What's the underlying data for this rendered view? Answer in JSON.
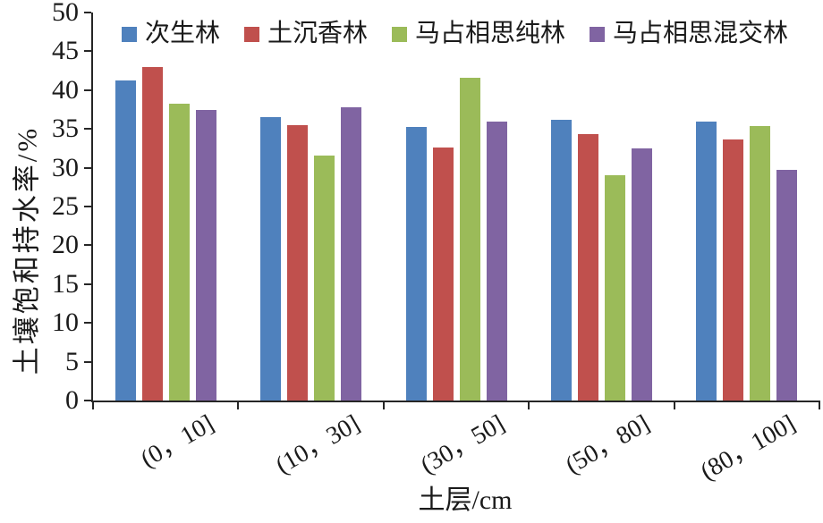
{
  "chart_data": {
    "type": "bar",
    "title": "",
    "xlabel": "土层/cm",
    "ylabel": "土壤饱和持水率/%",
    "categories": [
      "(0，10]",
      "(10，30]",
      "(30，50]",
      "(50，80]",
      "(80，100]"
    ],
    "series": [
      {
        "name": "次生林",
        "color": "#4F81BD",
        "values": [
          41.2,
          36.5,
          35.2,
          36.2,
          36.0
        ]
      },
      {
        "name": "土沉香林",
        "color": "#C0504D",
        "values": [
          43.0,
          35.5,
          32.6,
          34.3,
          33.6
        ]
      },
      {
        "name": "马占相思纯林",
        "color": "#9BBB59",
        "values": [
          38.3,
          31.6,
          41.6,
          29.0,
          35.4
        ]
      },
      {
        "name": "马占相思混交林",
        "color": "#8064A2",
        "values": [
          37.5,
          37.8,
          36.0,
          32.5,
          29.7
        ]
      }
    ],
    "ylim": [
      0,
      50
    ],
    "ytick_step": 5,
    "yticks": [
      0,
      5,
      10,
      15,
      20,
      25,
      30,
      35,
      40,
      45,
      50
    ],
    "grid": false,
    "legend_position": "top",
    "axis_color": "#262626"
  }
}
